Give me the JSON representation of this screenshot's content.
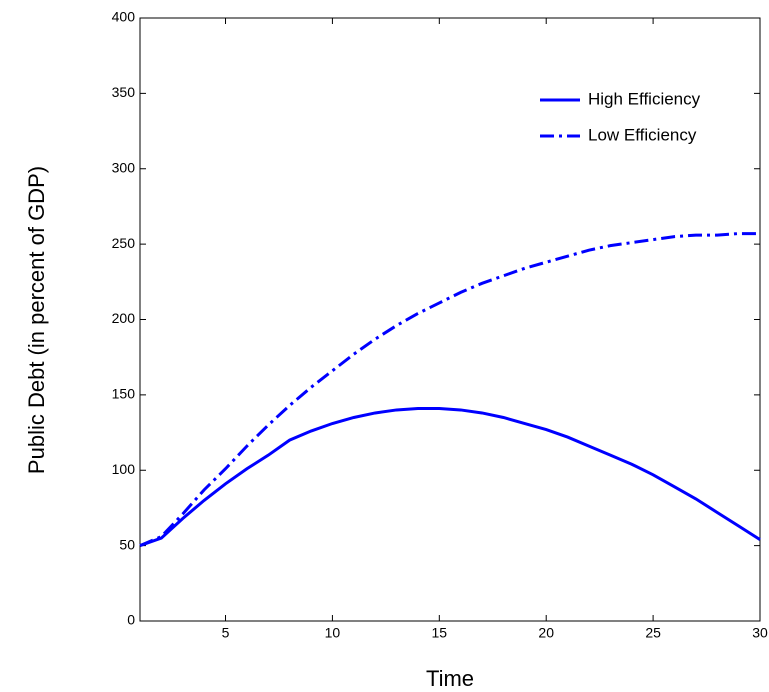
{
  "chart_data": {
    "type": "line",
    "x_label": "Time",
    "y_label": "Public Debt (in percent of GDP)",
    "x": [
      1,
      2,
      3,
      4,
      5,
      6,
      7,
      8,
      9,
      10,
      11,
      12,
      13,
      14,
      15,
      16,
      17,
      18,
      19,
      20,
      21,
      22,
      23,
      24,
      25,
      26,
      27,
      28,
      29,
      30
    ],
    "series": [
      {
        "name": "High Efficiency",
        "color": "#0000ff",
        "dash": "solid",
        "values": [
          50,
          55,
          68,
          80,
          91,
          101,
          110,
          120,
          126,
          131,
          135,
          138,
          140,
          141,
          141,
          140,
          138,
          135,
          131,
          127,
          122,
          116,
          110,
          104,
          97,
          89,
          81,
          72,
          63,
          54
        ]
      },
      {
        "name": "Low Efficiency",
        "color": "#0000ff",
        "dash": "dashdot",
        "values": [
          50,
          56,
          71,
          87,
          101,
          116,
          130,
          143,
          155,
          166,
          177,
          187,
          196,
          204,
          211,
          218,
          224,
          229,
          234,
          238,
          242,
          246,
          249,
          251,
          253,
          255,
          256,
          256,
          257,
          257
        ]
      }
    ],
    "xlim": [
      1,
      30
    ],
    "xticks": [
      5,
      10,
      15,
      20,
      25,
      30
    ],
    "ylim": [
      0,
      400
    ],
    "yticks": [
      0,
      50,
      100,
      150,
      200,
      250,
      300,
      350,
      400
    ],
    "legend": "upper-right",
    "grid": false
  }
}
